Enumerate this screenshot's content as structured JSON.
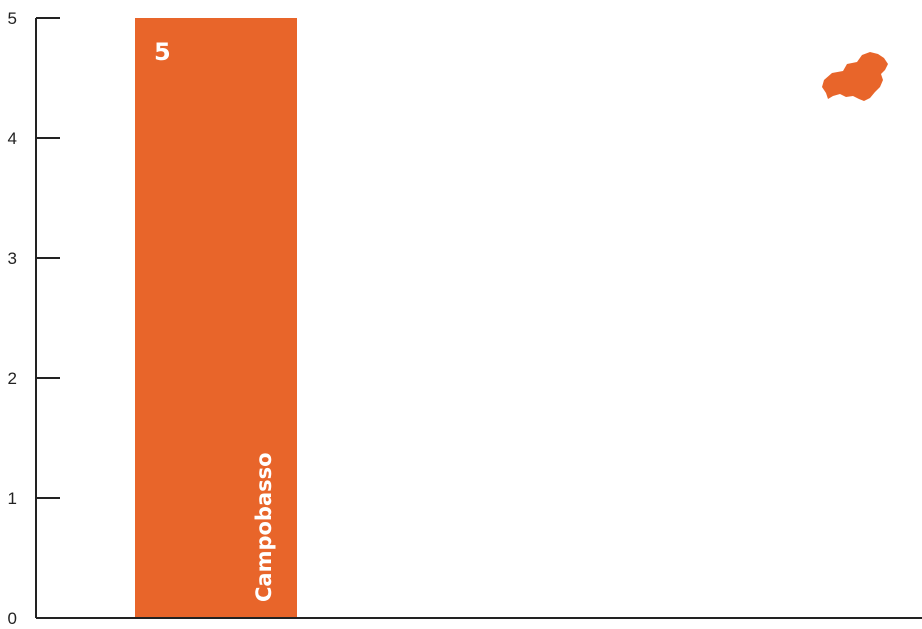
{
  "chart_data": {
    "type": "bar",
    "categories": [
      "Campobasso"
    ],
    "values": [
      5
    ],
    "data_labels": [
      "5"
    ],
    "ylim": [
      0,
      5
    ],
    "yticks": [
      0,
      1,
      2,
      3,
      4,
      5
    ],
    "xlabel": "",
    "ylabel": "",
    "grid": false,
    "legend": "none",
    "bar_color": "#E8652A",
    "axis_color": "#222222",
    "decoration_icon": "molise-region-map-icon"
  }
}
